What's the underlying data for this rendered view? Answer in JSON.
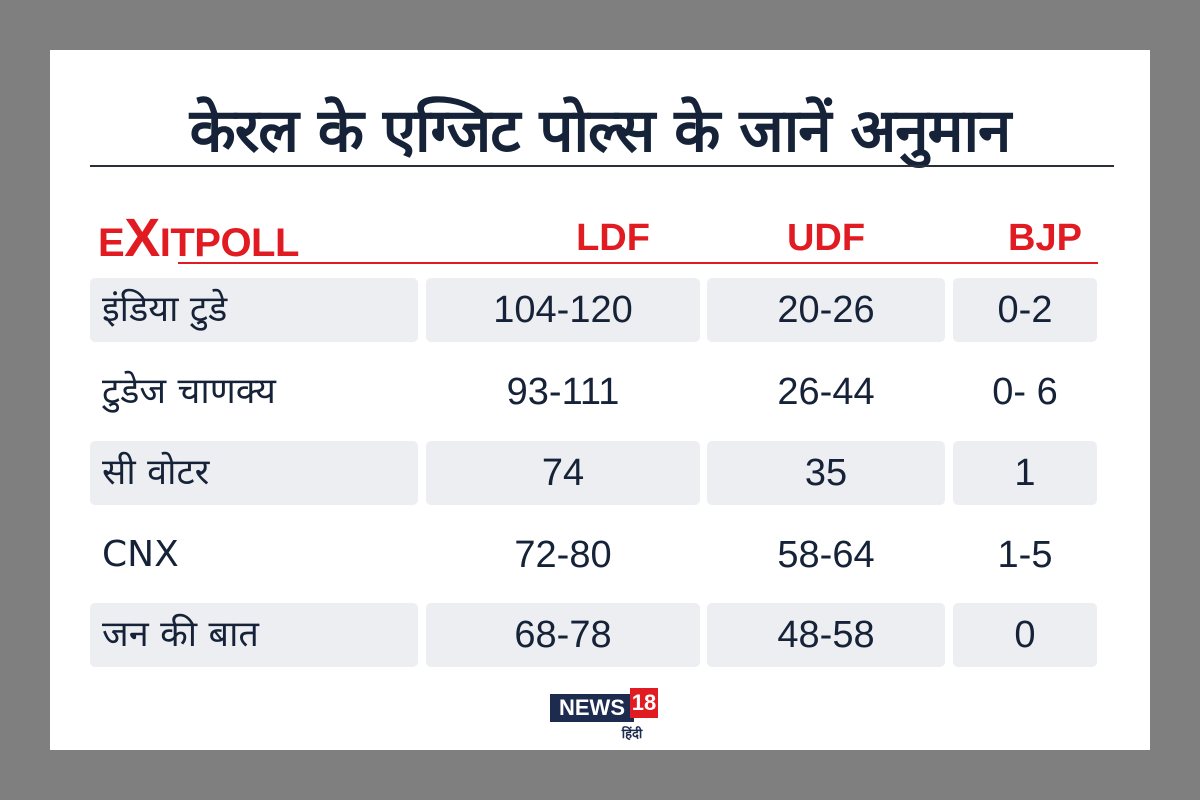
{
  "title": "केरल के एग्जिट पोल्स के जानें अनुमान",
  "brand": {
    "first": "E",
    "x": "X",
    "rest": "ITPOLL"
  },
  "columns": [
    "LDF",
    "UDF",
    "BJP"
  ],
  "rows": [
    {
      "pollster": "इंडिया टुडे",
      "ldf": "104-120",
      "udf": "20-26",
      "bjp": "0-2"
    },
    {
      "pollster": "टुडेज चाणक्य",
      "ldf": "93-111",
      "udf": "26-44",
      "bjp": "0- 6"
    },
    {
      "pollster": "सी वोटर",
      "ldf": "74",
      "udf": "35",
      "bjp": "1"
    },
    {
      "pollster": "CNX",
      "ldf": "72-80",
      "udf": "58-64",
      "bjp": "1-5"
    },
    {
      "pollster": "जन की बात",
      "ldf": "68-78",
      "udf": "48-58",
      "bjp": "0"
    }
  ],
  "logo": {
    "news": "NEWS",
    "number": "18",
    "language": "हिंदी"
  },
  "colors": {
    "accent": "#e11b22",
    "text": "#152238",
    "row_shade": "#eceef1",
    "frame": "#7f7f7f"
  }
}
